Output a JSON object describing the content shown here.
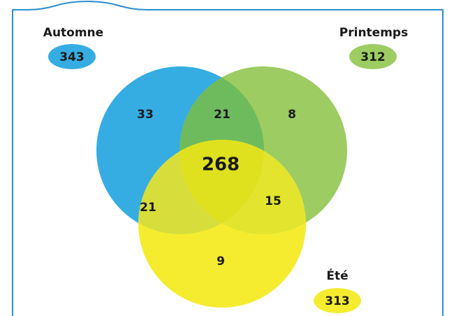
{
  "sets": [
    {
      "label": "Automne",
      "total": 343
    },
    {
      "label": "Printemps",
      "total": 312
    },
    {
      "label": "Été",
      "total": 313
    }
  ],
  "regions": [
    {
      "sets": "Automne",
      "value": 33
    },
    {
      "sets": "Automne Printemps",
      "value": 21
    },
    {
      "sets": "Printemps",
      "value": 8
    },
    {
      "sets": "Automne Printemps Été",
      "value": 268
    },
    {
      "sets": "Automne Été",
      "value": 21
    },
    {
      "sets": "Printemps Été",
      "value": 15
    },
    {
      "sets": "Été",
      "value": 9
    }
  ]
}
